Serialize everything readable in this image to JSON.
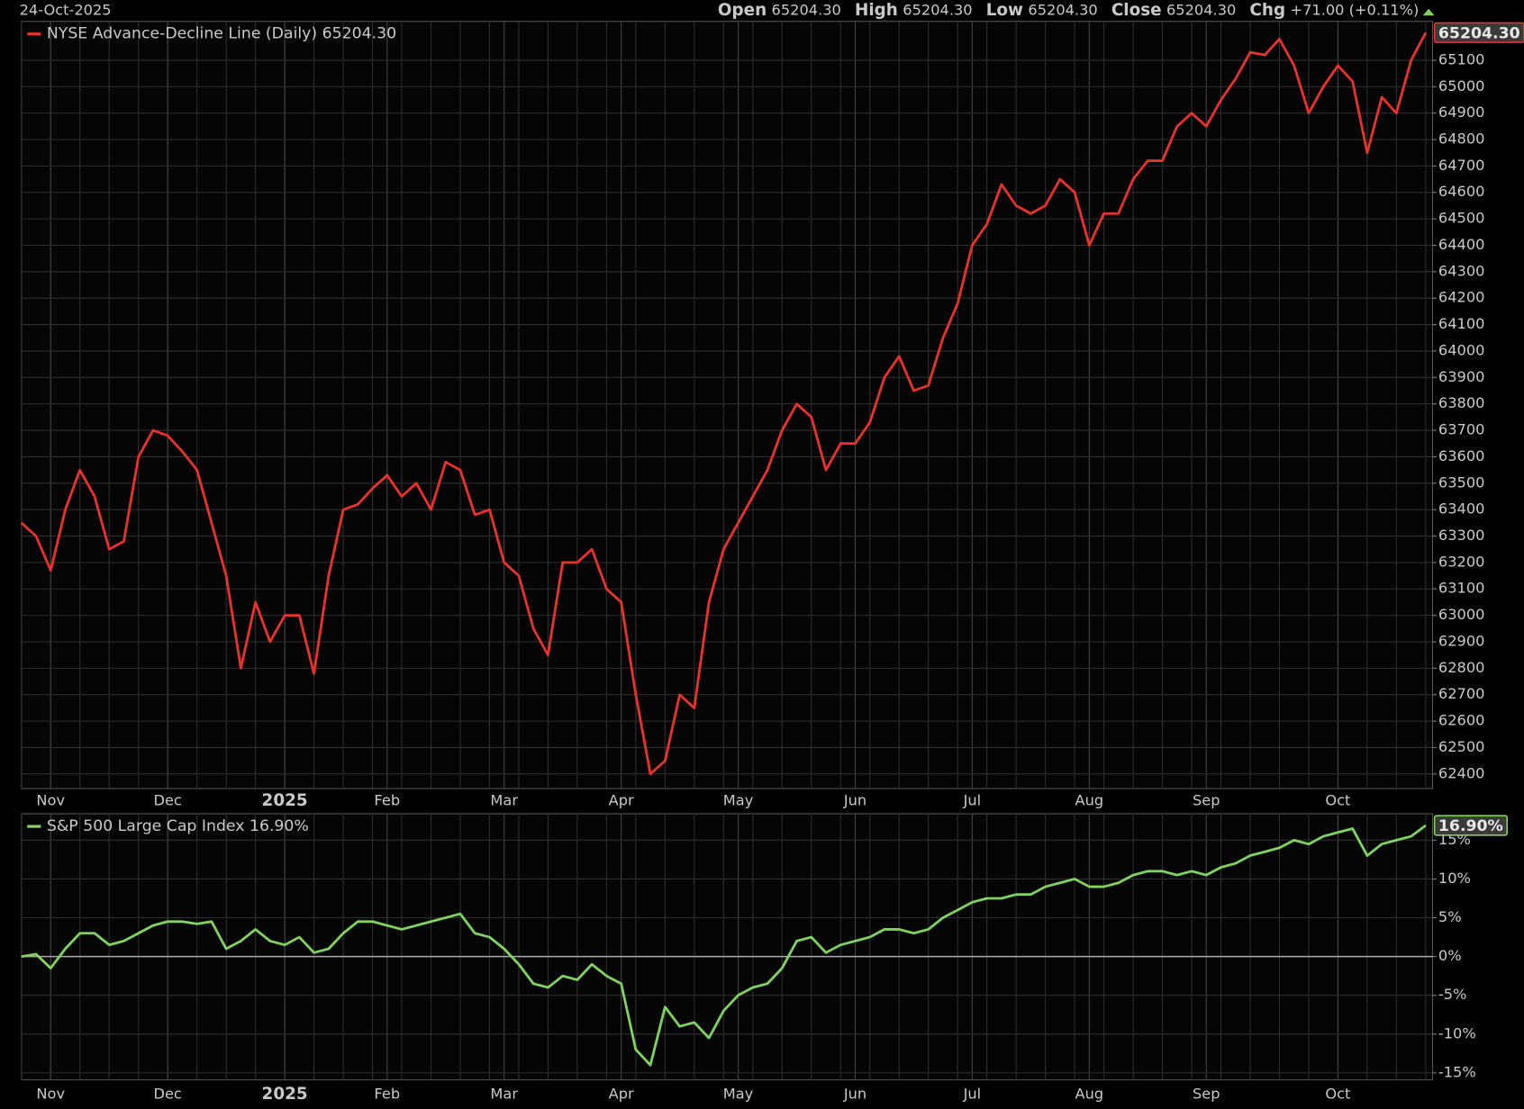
{
  "header": {
    "date": "24-Oct-2025",
    "fields": [
      {
        "label": "Open",
        "value": "65204.30"
      },
      {
        "label": "High",
        "value": "65204.30"
      },
      {
        "label": "Low",
        "value": "65204.30"
      },
      {
        "label": "Close",
        "value": "65204.30"
      },
      {
        "label": "Chg",
        "value": "+71.00 (+0.11%)"
      }
    ]
  },
  "chart_data": [
    {
      "type": "line",
      "categories": [
        null,
        null,
        "Nov",
        null,
        null,
        null,
        null,
        null,
        null,
        null,
        "Dec",
        null,
        null,
        null,
        null,
        null,
        null,
        null,
        "2025",
        null,
        null,
        null,
        null,
        null,
        null,
        "Feb",
        null,
        null,
        null,
        null,
        null,
        null,
        null,
        "Mar",
        null,
        null,
        null,
        null,
        null,
        null,
        null,
        "Apr",
        null,
        null,
        null,
        null,
        null,
        null,
        null,
        "May",
        null,
        null,
        null,
        null,
        null,
        null,
        null,
        "Jun",
        null,
        null,
        null,
        null,
        null,
        null,
        null,
        "Jul",
        null,
        null,
        null,
        null,
        null,
        null,
        null,
        "Aug",
        null,
        null,
        null,
        null,
        null,
        null,
        null,
        "Sep",
        null,
        null,
        null,
        null,
        null,
        null,
        null,
        null,
        "Oct",
        null,
        null,
        null,
        null,
        null,
        null
      ],
      "series": [
        {
          "name": "NYSE Advance-Decline Line (Daily) 65204.30",
          "color": "#e8332a",
          "values": [
            63350,
            63300,
            63170,
            63400,
            63550,
            63450,
            63250,
            63280,
            63600,
            63700,
            63680,
            63620,
            63550,
            63350,
            63150,
            62800,
            63050,
            62900,
            63000,
            63000,
            62780,
            63150,
            63400,
            63420,
            63480,
            63530,
            63450,
            63500,
            63400,
            63580,
            63550,
            63380,
            63400,
            63200,
            63150,
            62950,
            62850,
            63200,
            63200,
            63250,
            63100,
            63050,
            62700,
            62400,
            62450,
            62700,
            62650,
            63050,
            63250,
            63350,
            63450,
            63550,
            63700,
            63800,
            63750,
            63550,
            63650,
            63650,
            63730,
            63900,
            63980,
            63850,
            63870,
            64050,
            64180,
            64400,
            64480,
            64630,
            64550,
            64520,
            64550,
            64650,
            64600,
            64400,
            64520,
            64520,
            64650,
            64720,
            64720,
            64850,
            64900,
            64850,
            64950,
            65030,
            65130,
            65120,
            65180,
            65080,
            64900,
            65000,
            65080,
            65020,
            64750,
            64960,
            64900,
            65100,
            65204.3
          ],
          "last_value_label": "65204.30"
        }
      ],
      "ylim": [
        62345,
        65247
      ],
      "yticks": [
        62400,
        62500,
        62600,
        62700,
        62800,
        62900,
        63000,
        63100,
        63200,
        63300,
        63400,
        63500,
        63600,
        63700,
        63800,
        63900,
        64000,
        64100,
        64200,
        64300,
        64400,
        64500,
        64600,
        64700,
        64800,
        64900,
        65000,
        65100
      ],
      "grid": true
    },
    {
      "type": "line",
      "series": [
        {
          "name": "S&P 500 Large Cap Index 16.90%",
          "color": "#7fd35e",
          "values": [
            0,
            0.3,
            -1.5,
            1,
            3,
            3,
            1.5,
            2,
            3,
            4,
            4.5,
            4.5,
            4.2,
            4.5,
            1,
            2,
            3.5,
            2,
            1.5,
            2.5,
            0.5,
            1,
            3,
            4.5,
            4.5,
            4,
            3.5,
            4,
            4.5,
            5,
            5.5,
            3,
            2.5,
            1,
            -1,
            -3.5,
            -4,
            -2.5,
            -3,
            -1,
            -2.5,
            -3.5,
            -12,
            -14,
            -6.5,
            -9,
            -8.5,
            -10.5,
            -7,
            -5,
            -4,
            -3.5,
            -1.5,
            2,
            2.5,
            0.5,
            1.5,
            2,
            2.5,
            3.5,
            3.5,
            3,
            3.5,
            5,
            6,
            7,
            7.5,
            7.5,
            8,
            8,
            9,
            9.5,
            10,
            9,
            9,
            9.5,
            10.5,
            11,
            11,
            10.5,
            11,
            10.5,
            11.5,
            12,
            13,
            13.5,
            14,
            15,
            14.5,
            15.5,
            16,
            16.5,
            13,
            14.5,
            15,
            15.5,
            16.9
          ],
          "last_value_label": "16.90%"
        }
      ],
      "ylim": [
        -15.9,
        18.4
      ],
      "yticks": [
        {
          "value": -15,
          "label": "-15%"
        },
        {
          "value": -10,
          "label": "-10%"
        },
        {
          "value": -5,
          "label": "-5%"
        },
        {
          "value": 0,
          "label": "0%"
        },
        {
          "value": 5,
          "label": "5%"
        },
        {
          "value": 10,
          "label": "10%"
        },
        {
          "value": 15,
          "label": "15%"
        }
      ],
      "zero_line": true,
      "grid": true
    }
  ]
}
